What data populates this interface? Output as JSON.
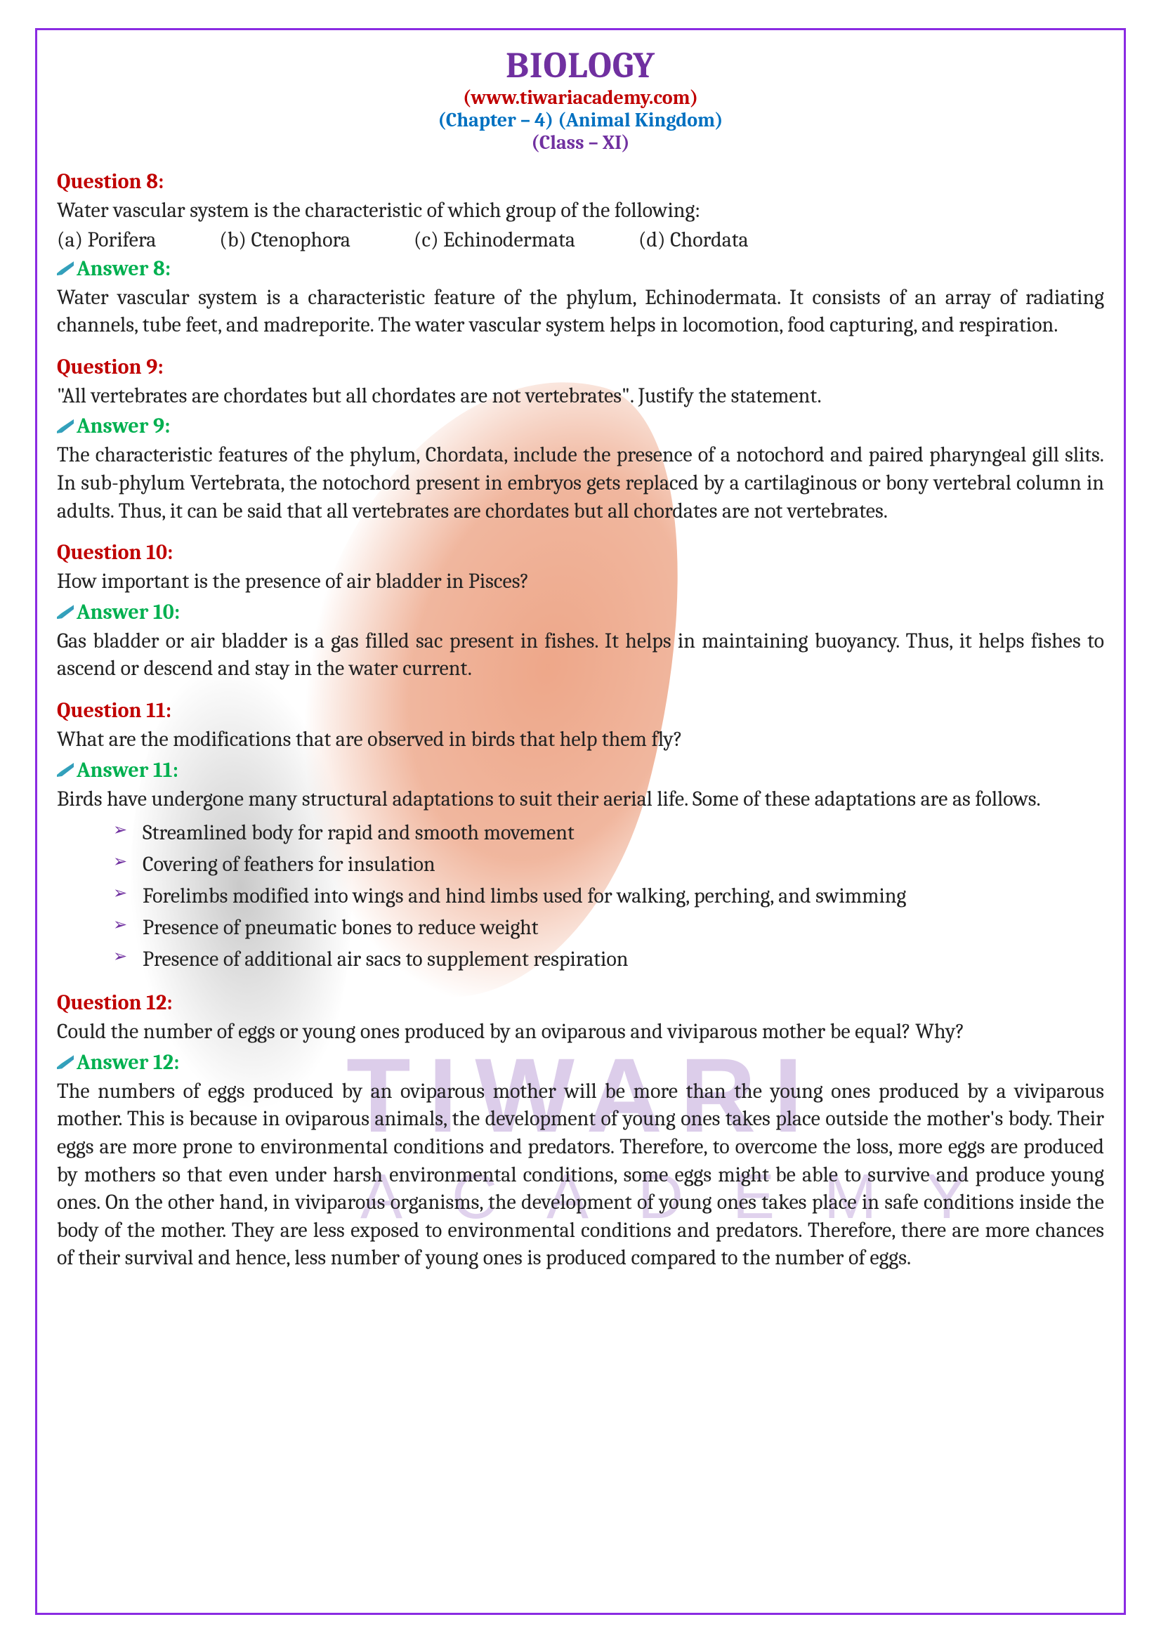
{
  "header": {
    "title": "BIOLOGY",
    "website": "(www.tiwariacademy.com)",
    "chapter": "(Chapter – 4) (Animal Kingdom)",
    "classLine": "(Class – XI)"
  },
  "watermark": {
    "line1": "TIWARI",
    "line2": "ACADEMY"
  },
  "q8": {
    "label": "Question 8:",
    "text": "Water vascular system is the characteristic of which group of the following:",
    "opts": {
      "a": "(a) Porifera",
      "b": "(b) Ctenophora",
      "c": "(c) Echinodermata",
      "d": "(d) Chordata"
    },
    "answerLabel": "Answer 8:",
    "answer": "Water vascular system is a characteristic feature of the phylum, Echinodermata. It consists of an array of radiating channels, tube feet, and madreporite. The water vascular system helps in locomotion, food capturing, and respiration."
  },
  "q9": {
    "label": "Question 9:",
    "text": "\"All vertebrates are chordates but all chordates are not vertebrates\". Justify the statement.",
    "answerLabel": "Answer 9:",
    "answer": "The characteristic features of the phylum, Chordata, include the presence of a notochord and paired pharyngeal gill slits. In sub-phylum Vertebrata, the notochord present in embryos gets replaced by a cartilaginous or bony vertebral column in adults. Thus, it can be said that all vertebrates are chordates but all chordates are not vertebrates."
  },
  "q10": {
    "label": "Question 10:",
    "text": "How important is the presence of air bladder in Pisces?",
    "answerLabel": "Answer 10:",
    "answer": "Gas bladder or air bladder is a gas filled sac present in fishes. It helps in maintaining buoyancy. Thus, it helps fishes to ascend or descend and stay in the water current."
  },
  "q11": {
    "label": "Question 11:",
    "text": "What are the modifications that are observed in birds that help them fly?",
    "answerLabel": "Answer 11:",
    "intro": "Birds have undergone many structural adaptations to suit their aerial life. Some of these adaptations are as follows.",
    "items": {
      "i0": "Streamlined body for rapid and smooth movement",
      "i1": "Covering of feathers for insulation",
      "i2": "Forelimbs modified into wings and hind limbs used for walking, perching, and swimming",
      "i3": "Presence of pneumatic bones to reduce weight",
      "i4": "Presence of additional air sacs to supplement respiration"
    }
  },
  "q12": {
    "label": "Question 12:",
    "text": "Could the number of eggs or young ones produced by an oviparous and viviparous mother be equal? Why?",
    "answerLabel": "Answer 12:",
    "answer": "The numbers of eggs produced by an oviparous mother will be more than the young ones produced by a viviparous mother. This is because in oviparous animals, the development of young ones takes place outside the mother's body. Their eggs are more prone to environmental conditions and predators. Therefore, to overcome the loss, more eggs are produced by mothers so that even under harsh environmental conditions, some eggs might be able to survive and produce young ones. On the other hand, in viviparous organisms, the development of young ones takes place in safe conditions inside the body of the mother. They are less exposed to environmental conditions and predators. Therefore, there are more chances of their survival and hence, less number of young ones is produced compared to the number of eggs."
  }
}
